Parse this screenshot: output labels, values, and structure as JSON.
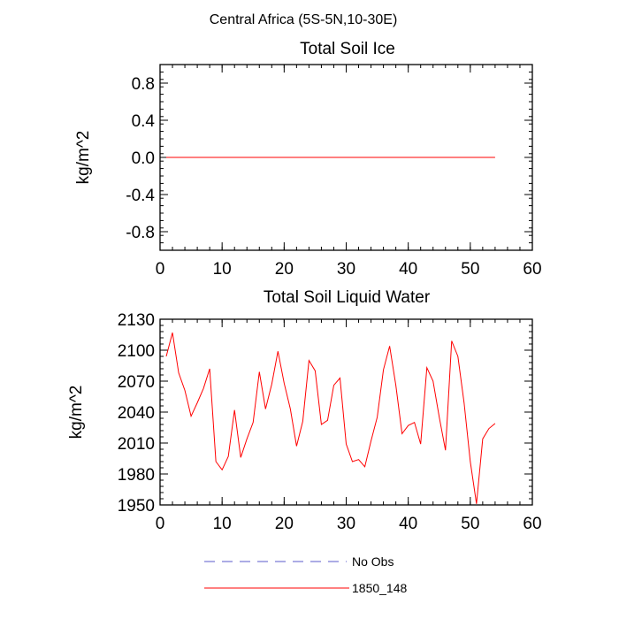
{
  "figure": {
    "suptitle": "Central Africa (5S-5N,10-30E)"
  },
  "legend": {
    "entries": [
      {
        "label": "No Obs",
        "color": "#5a5acb",
        "style": "dashed"
      },
      {
        "label": "1850_148",
        "color": "#ff0000",
        "style": "solid"
      }
    ]
  },
  "chart_data": [
    {
      "type": "line",
      "title": "Total Soil Ice",
      "xlabel": "",
      "ylabel": "kg/m^2",
      "xlim": [
        0,
        60
      ],
      "ylim": [
        -1.0,
        1.0
      ],
      "xticks": [
        0,
        10,
        20,
        30,
        40,
        50,
        60
      ],
      "yticks": [
        -0.8,
        -0.4,
        0.0,
        0.4,
        0.8
      ],
      "ytick_labels": [
        "-0.8",
        "-0.4",
        "0.0",
        "0.4",
        "0.8"
      ],
      "series": [
        {
          "name": "1850_148",
          "color": "#ff0000",
          "x": [
            1,
            54
          ],
          "y": [
            0.0,
            0.0
          ]
        }
      ]
    },
    {
      "type": "line",
      "title": "Total Soil Liquid Water",
      "xlabel": "",
      "ylabel": "kg/m^2",
      "xlim": [
        0,
        60
      ],
      "ylim": [
        1950,
        2130
      ],
      "xticks": [
        0,
        10,
        20,
        30,
        40,
        50,
        60
      ],
      "yticks": [
        1950,
        1980,
        2010,
        2040,
        2070,
        2100,
        2130
      ],
      "ytick_labels": [
        "1950",
        "1980",
        "2010",
        "2040",
        "2070",
        "2100",
        "2130"
      ],
      "series": [
        {
          "name": "1850_148",
          "color": "#ff0000",
          "x": [
            1,
            2,
            3,
            4,
            5,
            6,
            7,
            8,
            9,
            10,
            11,
            12,
            13,
            14,
            15,
            16,
            17,
            18,
            19,
            20,
            21,
            22,
            23,
            24,
            25,
            26,
            27,
            28,
            29,
            30,
            31,
            32,
            33,
            34,
            35,
            36,
            37,
            38,
            39,
            40,
            41,
            42,
            43,
            44,
            45,
            46,
            47,
            48,
            49,
            50,
            51,
            52,
            53,
            54
          ],
          "y": [
            2094,
            2117,
            2078,
            2061,
            2036,
            2049,
            2063,
            2082,
            1992,
            1984,
            1997,
            2042,
            1996,
            2014,
            2030,
            2079,
            2043,
            2067,
            2099,
            2068,
            2043,
            2007,
            2031,
            2090,
            2080,
            2028,
            2032,
            2066,
            2073,
            2009,
            1992,
            1994,
            1987,
            2012,
            2035,
            2081,
            2104,
            2066,
            2019,
            2027,
            2030,
            2009,
            2083,
            2070,
            2035,
            2003,
            2109,
            2094,
            2049,
            1992,
            1951,
            2014,
            2024,
            2029
          ]
        }
      ]
    }
  ]
}
